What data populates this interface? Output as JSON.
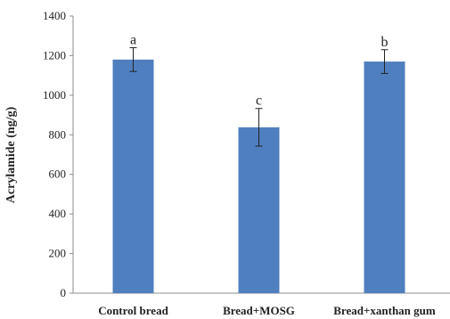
{
  "chart_data": {
    "type": "bar",
    "title": "",
    "xlabel": "",
    "ylabel": "Acrylamide (ng/g)",
    "ylim": [
      0,
      1400
    ],
    "yticks": [
      0,
      200,
      400,
      600,
      800,
      1000,
      1200,
      1400
    ],
    "ytick_labels": [
      "0",
      "200",
      "400",
      "600",
      "800",
      "1000",
      "1200",
      "1400"
    ],
    "categories": [
      "Control bread",
      "Bread+MOSG",
      "Bread+xanthan gum"
    ],
    "values": [
      1180,
      838,
      1170
    ],
    "errors": [
      60,
      95,
      60
    ],
    "significance": [
      "a",
      "c",
      "b"
    ],
    "grid": false,
    "colors": {
      "bar": "#4f7fbf",
      "axis": "#8c8c8c",
      "error": "#222222"
    }
  }
}
